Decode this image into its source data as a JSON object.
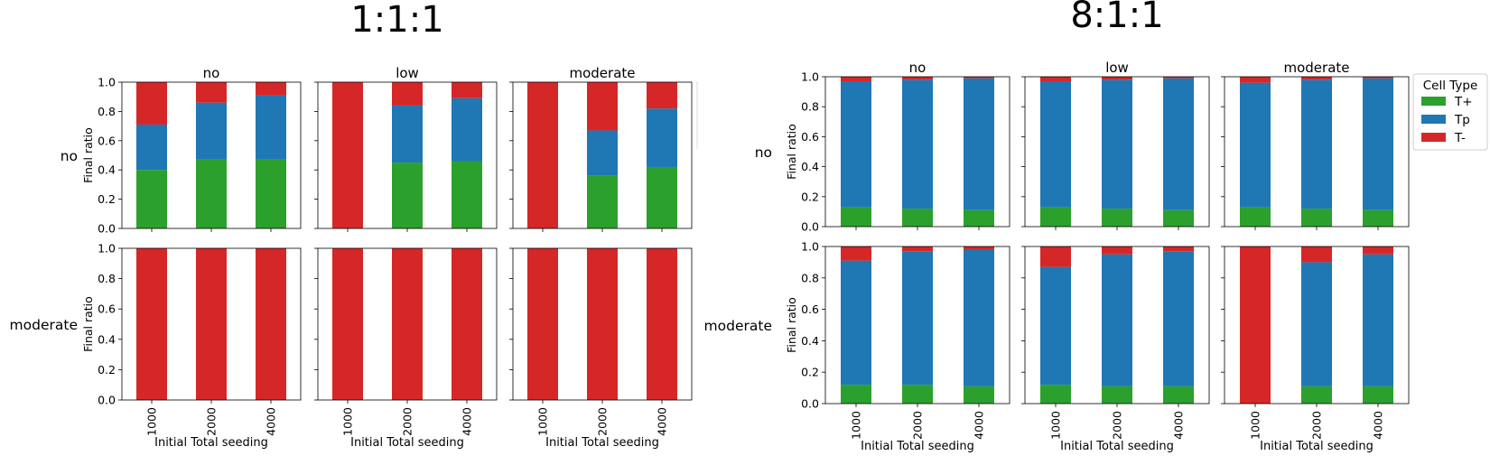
{
  "figure": {
    "panels": [
      {
        "title": "1:1:1"
      },
      {
        "title": "8:1:1"
      }
    ],
    "col_titles": [
      "no",
      "low",
      "moderate"
    ],
    "row_titles": [
      "no",
      "moderate"
    ],
    "ylabel": "Final ratio",
    "xlabel": "Initial Total seeding",
    "y_ticks": [
      "0.0",
      "0.2",
      "0.4",
      "0.6",
      "0.8",
      "1.0"
    ],
    "legend": {
      "title": "Cell Type",
      "entries": [
        {
          "label": "T+",
          "color": "#2ca02c"
        },
        {
          "label": "Tp",
          "color": "#1f77b4"
        },
        {
          "label": "T-",
          "color": "#d62728"
        }
      ]
    }
  },
  "chart_data": [
    {
      "type": "bar",
      "stacked": true,
      "panel": "1:1:1",
      "row": "no",
      "col": "no",
      "categories": [
        "1000",
        "2000",
        "4000"
      ],
      "series": [
        {
          "name": "T+",
          "color": "#2ca02c",
          "values": [
            0.4,
            0.47,
            0.47
          ]
        },
        {
          "name": "Tp",
          "color": "#1f77b4",
          "values": [
            0.31,
            0.39,
            0.44
          ]
        },
        {
          "name": "T-",
          "color": "#d62728",
          "values": [
            0.29,
            0.14,
            0.09
          ]
        }
      ],
      "ylim": [
        0,
        1
      ]
    },
    {
      "type": "bar",
      "stacked": true,
      "panel": "1:1:1",
      "row": "no",
      "col": "low",
      "categories": [
        "1000",
        "2000",
        "4000"
      ],
      "series": [
        {
          "name": "T+",
          "color": "#2ca02c",
          "values": [
            0.0,
            0.45,
            0.46
          ]
        },
        {
          "name": "Tp",
          "color": "#1f77b4",
          "values": [
            0.0,
            0.39,
            0.43
          ]
        },
        {
          "name": "T-",
          "color": "#d62728",
          "values": [
            1.0,
            0.16,
            0.11
          ]
        }
      ],
      "ylim": [
        0,
        1
      ]
    },
    {
      "type": "bar",
      "stacked": true,
      "panel": "1:1:1",
      "row": "no",
      "col": "moderate",
      "categories": [
        "1000",
        "2000",
        "4000"
      ],
      "series": [
        {
          "name": "T+",
          "color": "#2ca02c",
          "values": [
            0.0,
            0.36,
            0.42
          ]
        },
        {
          "name": "Tp",
          "color": "#1f77b4",
          "values": [
            0.0,
            0.31,
            0.4
          ]
        },
        {
          "name": "T-",
          "color": "#d62728",
          "values": [
            1.0,
            0.33,
            0.18
          ]
        }
      ],
      "ylim": [
        0,
        1
      ]
    },
    {
      "type": "bar",
      "stacked": true,
      "panel": "1:1:1",
      "row": "moderate",
      "col": "no",
      "categories": [
        "1000",
        "2000",
        "4000"
      ],
      "series": [
        {
          "name": "T+",
          "color": "#2ca02c",
          "values": [
            0.0,
            0.0,
            0.0
          ]
        },
        {
          "name": "Tp",
          "color": "#1f77b4",
          "values": [
            0.0,
            0.0,
            0.0
          ]
        },
        {
          "name": "T-",
          "color": "#d62728",
          "values": [
            1.0,
            1.0,
            1.0
          ]
        }
      ],
      "ylim": [
        0,
        1
      ]
    },
    {
      "type": "bar",
      "stacked": true,
      "panel": "1:1:1",
      "row": "moderate",
      "col": "low",
      "categories": [
        "1000",
        "2000",
        "4000"
      ],
      "series": [
        {
          "name": "T+",
          "color": "#2ca02c",
          "values": [
            0.0,
            0.0,
            0.0
          ]
        },
        {
          "name": "Tp",
          "color": "#1f77b4",
          "values": [
            0.0,
            0.0,
            0.0
          ]
        },
        {
          "name": "T-",
          "color": "#d62728",
          "values": [
            1.0,
            1.0,
            1.0
          ]
        }
      ],
      "ylim": [
        0,
        1
      ]
    },
    {
      "type": "bar",
      "stacked": true,
      "panel": "1:1:1",
      "row": "moderate",
      "col": "moderate",
      "categories": [
        "1000",
        "2000",
        "4000"
      ],
      "series": [
        {
          "name": "T+",
          "color": "#2ca02c",
          "values": [
            0.0,
            0.0,
            0.0
          ]
        },
        {
          "name": "Tp",
          "color": "#1f77b4",
          "values": [
            0.0,
            0.0,
            0.0
          ]
        },
        {
          "name": "T-",
          "color": "#d62728",
          "values": [
            1.0,
            1.0,
            1.0
          ]
        }
      ],
      "ylim": [
        0,
        1
      ]
    },
    {
      "type": "bar",
      "stacked": true,
      "panel": "8:1:1",
      "row": "no",
      "col": "no",
      "categories": [
        "1000",
        "2000",
        "4000"
      ],
      "series": [
        {
          "name": "T+",
          "color": "#2ca02c",
          "values": [
            0.13,
            0.12,
            0.11
          ]
        },
        {
          "name": "Tp",
          "color": "#1f77b4",
          "values": [
            0.84,
            0.86,
            0.88
          ]
        },
        {
          "name": "T-",
          "color": "#d62728",
          "values": [
            0.03,
            0.02,
            0.01
          ]
        }
      ],
      "ylim": [
        0,
        1
      ]
    },
    {
      "type": "bar",
      "stacked": true,
      "panel": "8:1:1",
      "row": "no",
      "col": "low",
      "categories": [
        "1000",
        "2000",
        "4000"
      ],
      "series": [
        {
          "name": "T+",
          "color": "#2ca02c",
          "values": [
            0.13,
            0.12,
            0.11
          ]
        },
        {
          "name": "Tp",
          "color": "#1f77b4",
          "values": [
            0.84,
            0.86,
            0.88
          ]
        },
        {
          "name": "T-",
          "color": "#d62728",
          "values": [
            0.03,
            0.02,
            0.01
          ]
        }
      ],
      "ylim": [
        0,
        1
      ]
    },
    {
      "type": "bar",
      "stacked": true,
      "panel": "8:1:1",
      "row": "no",
      "col": "moderate",
      "categories": [
        "1000",
        "2000",
        "4000"
      ],
      "series": [
        {
          "name": "T+",
          "color": "#2ca02c",
          "values": [
            0.13,
            0.12,
            0.11
          ]
        },
        {
          "name": "Tp",
          "color": "#1f77b4",
          "values": [
            0.83,
            0.86,
            0.88
          ]
        },
        {
          "name": "T-",
          "color": "#d62728",
          "values": [
            0.04,
            0.02,
            0.01
          ]
        }
      ],
      "ylim": [
        0,
        1
      ]
    },
    {
      "type": "bar",
      "stacked": true,
      "panel": "8:1:1",
      "row": "moderate",
      "col": "no",
      "categories": [
        "1000",
        "2000",
        "4000"
      ],
      "series": [
        {
          "name": "T+",
          "color": "#2ca02c",
          "values": [
            0.12,
            0.12,
            0.11
          ]
        },
        {
          "name": "Tp",
          "color": "#1f77b4",
          "values": [
            0.79,
            0.85,
            0.87
          ]
        },
        {
          "name": "T-",
          "color": "#d62728",
          "values": [
            0.09,
            0.03,
            0.02
          ]
        }
      ],
      "ylim": [
        0,
        1
      ]
    },
    {
      "type": "bar",
      "stacked": true,
      "panel": "8:1:1",
      "row": "moderate",
      "col": "low",
      "categories": [
        "1000",
        "2000",
        "4000"
      ],
      "series": [
        {
          "name": "T+",
          "color": "#2ca02c",
          "values": [
            0.12,
            0.11,
            0.11
          ]
        },
        {
          "name": "Tp",
          "color": "#1f77b4",
          "values": [
            0.75,
            0.84,
            0.86
          ]
        },
        {
          "name": "T-",
          "color": "#d62728",
          "values": [
            0.13,
            0.05,
            0.03
          ]
        }
      ],
      "ylim": [
        0,
        1
      ]
    },
    {
      "type": "bar",
      "stacked": true,
      "panel": "8:1:1",
      "row": "moderate",
      "col": "moderate",
      "categories": [
        "1000",
        "2000",
        "4000"
      ],
      "series": [
        {
          "name": "T+",
          "color": "#2ca02c",
          "values": [
            0.0,
            0.11,
            0.11
          ]
        },
        {
          "name": "Tp",
          "color": "#1f77b4",
          "values": [
            0.0,
            0.79,
            0.84
          ]
        },
        {
          "name": "T-",
          "color": "#d62728",
          "values": [
            1.0,
            0.1,
            0.05
          ]
        }
      ],
      "ylim": [
        0,
        1
      ]
    }
  ]
}
